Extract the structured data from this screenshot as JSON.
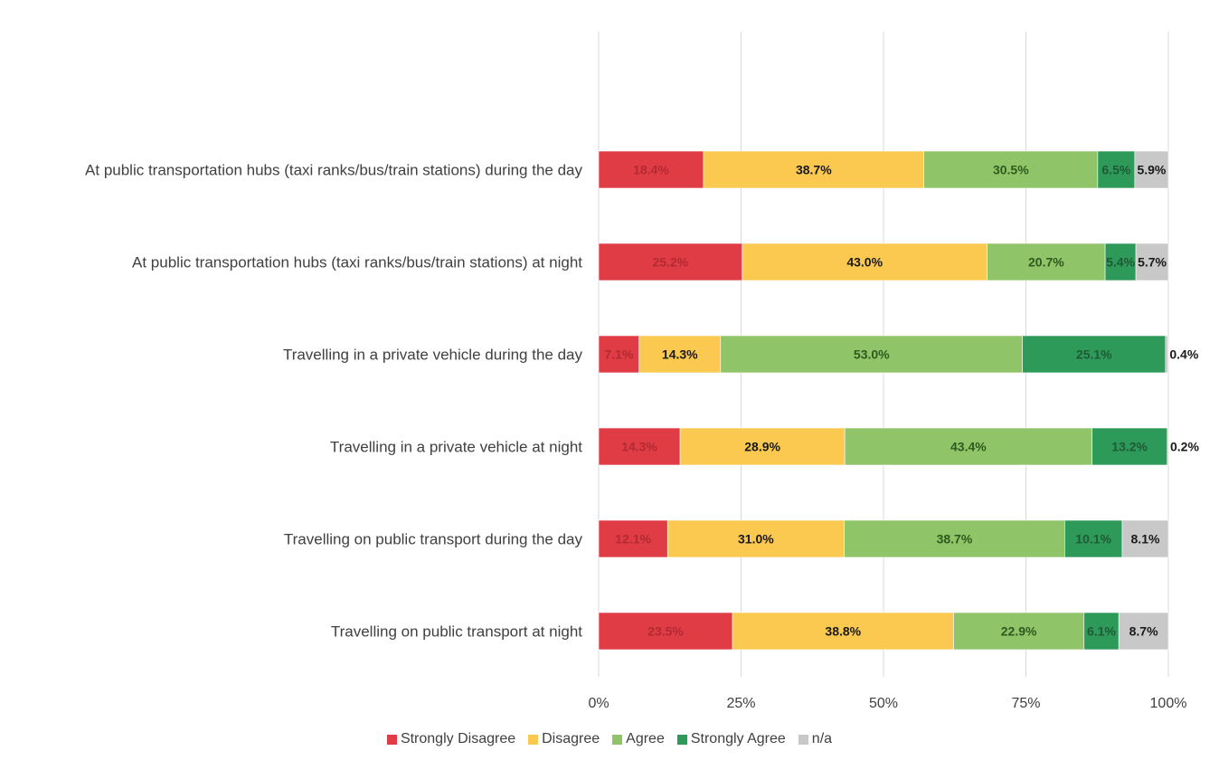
{
  "chart_data": {
    "type": "bar",
    "orientation": "horizontal",
    "stacked": "percent",
    "categories": [
      "At public transportation hubs (taxi ranks/bus/train stations) during the day",
      "At public transportation hubs (taxi ranks/bus/train stations) at night",
      "Travelling in a private vehicle during the day",
      "Travelling in a private vehicle at night",
      "Travelling on public transport during the day",
      "Travelling on public transport at night"
    ],
    "series": [
      {
        "name": "Strongly Disagree",
        "color": "#e03c45",
        "label_color": "#b22a33",
        "values": [
          18.4,
          25.2,
          7.1,
          14.3,
          12.1,
          23.5
        ],
        "labels": [
          "18.4%",
          "25.2%",
          "7.1%",
          "14.3%",
          "12.1%",
          "23.5%"
        ]
      },
      {
        "name": "Disagree",
        "color": "#fbc94f",
        "label_color": "#1a1a1a",
        "values": [
          38.7,
          43.0,
          14.3,
          28.9,
          31.0,
          38.8
        ],
        "labels": [
          "38.7%",
          "43.0%",
          "14.3%",
          "28.9%",
          "31.0%",
          "38.8%"
        ]
      },
      {
        "name": "Agree",
        "color": "#8fc468",
        "label_color": "#2d5a1e",
        "values": [
          30.5,
          20.7,
          53.0,
          43.4,
          38.7,
          22.9
        ],
        "labels": [
          "30.5%",
          "20.7%",
          "53.0%",
          "43.4%",
          "38.7%",
          "22.9%"
        ]
      },
      {
        "name": "Strongly Agree",
        "color": "#2e9a5a",
        "label_color": "#1e5a34",
        "values": [
          6.5,
          5.4,
          25.1,
          13.2,
          10.1,
          6.1
        ],
        "labels": [
          "6.5%",
          "5.4%",
          "25.1%",
          "13.2%",
          "10.1%",
          "6.1%"
        ]
      },
      {
        "name": "n/a",
        "color": "#c8c8c8",
        "label_color": "#1a1a1a",
        "values": [
          5.9,
          5.7,
          0.4,
          0.2,
          8.1,
          8.7
        ],
        "labels": [
          "5.9%",
          "5.7%",
          "0.4%",
          "0.2%",
          "8.1%",
          "8.7%"
        ]
      }
    ],
    "x_ticks": [
      "0%",
      "25%",
      "50%",
      "75%",
      "100%"
    ],
    "xlim": [
      0,
      100
    ],
    "grid": true,
    "legend_position": "bottom",
    "title": "",
    "xlabel": "",
    "ylabel": ""
  }
}
